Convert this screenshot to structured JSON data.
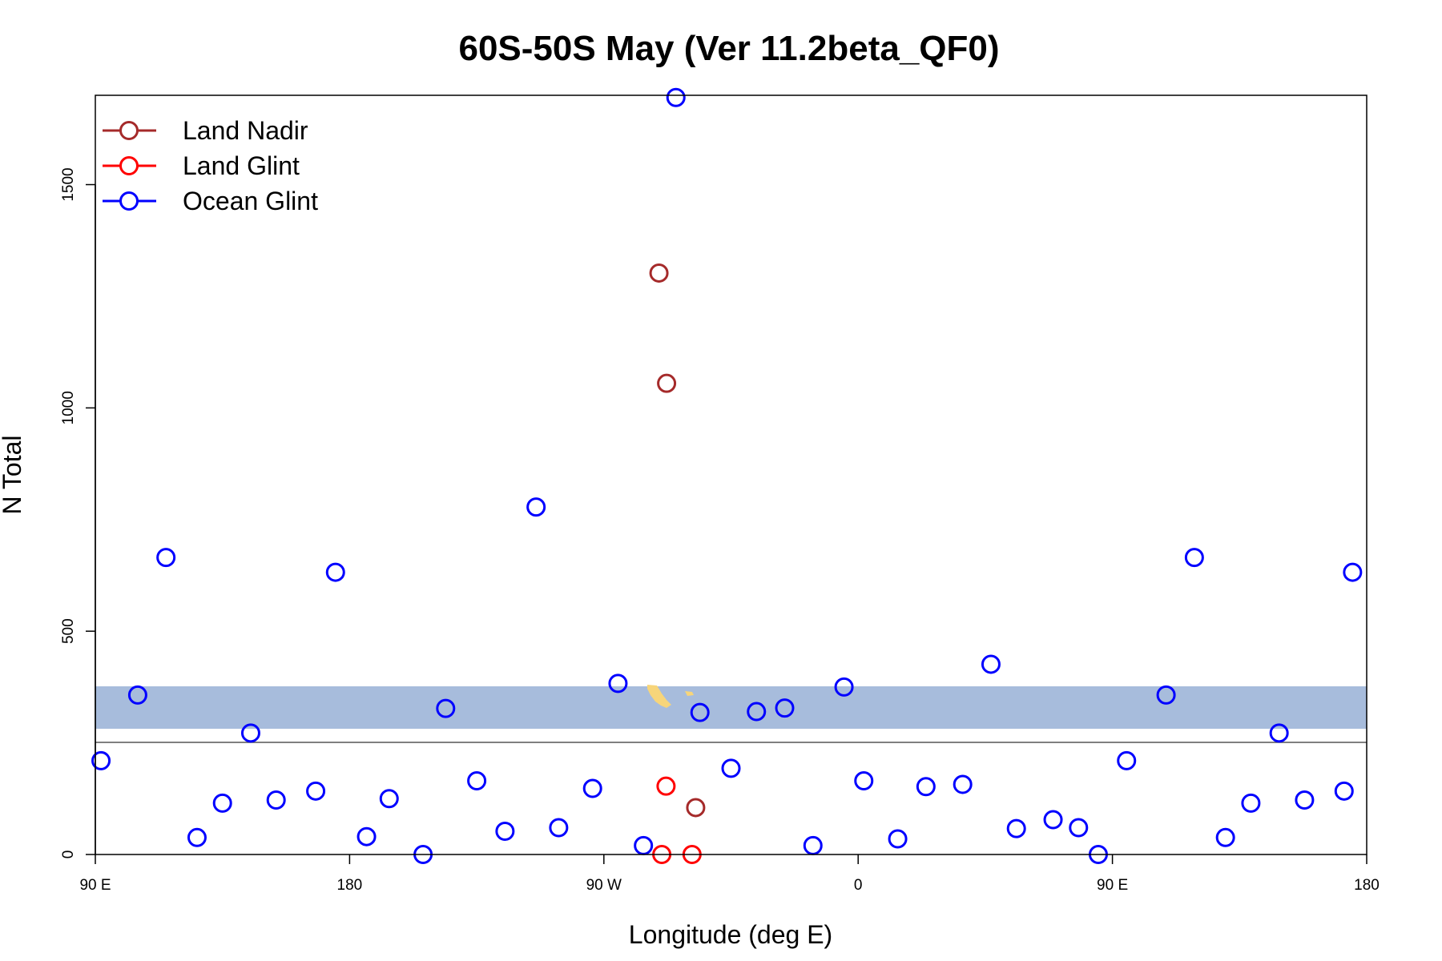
{
  "colors": {
    "land_nadir": "#a52a2a",
    "land_glint": "#ff0000",
    "ocean_glint": "#0000ff",
    "map_band": "#a7bcdc",
    "land_fill": "#f7d57a"
  },
  "chart_data": {
    "type": "scatter",
    "title": "60S-50S May (Ver 11.2beta_QF0)",
    "xlabel": "Longitude (deg E)",
    "ylabel": "N Total",
    "x_ticks": [
      {
        "value": 90,
        "label": "90 E"
      },
      {
        "value": 180,
        "label": "180"
      },
      {
        "value": 270,
        "label": "90 W"
      },
      {
        "value": 360,
        "label": "0"
      },
      {
        "value": 450,
        "label": "90 E"
      },
      {
        "value": 540,
        "label": "180"
      }
    ],
    "y_ticks": [
      0,
      500,
      1000,
      1500
    ],
    "xlim": [
      90,
      540
    ],
    "ylim": [
      0,
      1700
    ],
    "legend_position": "top-left",
    "series": [
      {
        "name": "Land Nadir",
        "color_key": "land_nadir",
        "points": [
          [
            289.5,
            1302
          ],
          [
            292.2,
            1055
          ],
          [
            302.5,
            105
          ]
        ]
      },
      {
        "name": "Land Glint",
        "color_key": "land_glint",
        "points": [
          [
            292.0,
            153
          ],
          [
            290.5,
            0
          ],
          [
            301.2,
            0
          ]
        ]
      },
      {
        "name": "Ocean Glint",
        "color_key": "ocean_glint",
        "points": [
          [
            92,
            210
          ],
          [
            105,
            357
          ],
          [
            115,
            665
          ],
          [
            126,
            38
          ],
          [
            135,
            115
          ],
          [
            145,
            272
          ],
          [
            154,
            122
          ],
          [
            168,
            142
          ],
          [
            175,
            632
          ],
          [
            186,
            40
          ],
          [
            194,
            125
          ],
          [
            206,
            0
          ],
          [
            214,
            327
          ],
          [
            225,
            165
          ],
          [
            235,
            52
          ],
          [
            246,
            778
          ],
          [
            254,
            60
          ],
          [
            266,
            148
          ],
          [
            275,
            383
          ],
          [
            284,
            20
          ],
          [
            295.5,
            1695
          ],
          [
            304,
            318
          ],
          [
            315,
            193
          ],
          [
            324,
            320
          ],
          [
            334,
            328
          ],
          [
            344,
            20
          ],
          [
            355,
            375
          ],
          [
            362,
            165
          ],
          [
            374,
            35
          ],
          [
            384,
            152
          ],
          [
            397,
            157
          ],
          [
            407,
            426
          ],
          [
            416,
            58
          ],
          [
            429,
            78
          ],
          [
            438,
            60
          ],
          [
            445,
            0
          ],
          [
            455,
            210
          ],
          [
            469,
            357
          ],
          [
            479,
            665
          ],
          [
            490,
            38
          ],
          [
            499,
            115
          ],
          [
            509,
            272
          ],
          [
            518,
            122
          ],
          [
            532,
            142
          ],
          [
            535,
            632
          ]
        ]
      }
    ]
  }
}
